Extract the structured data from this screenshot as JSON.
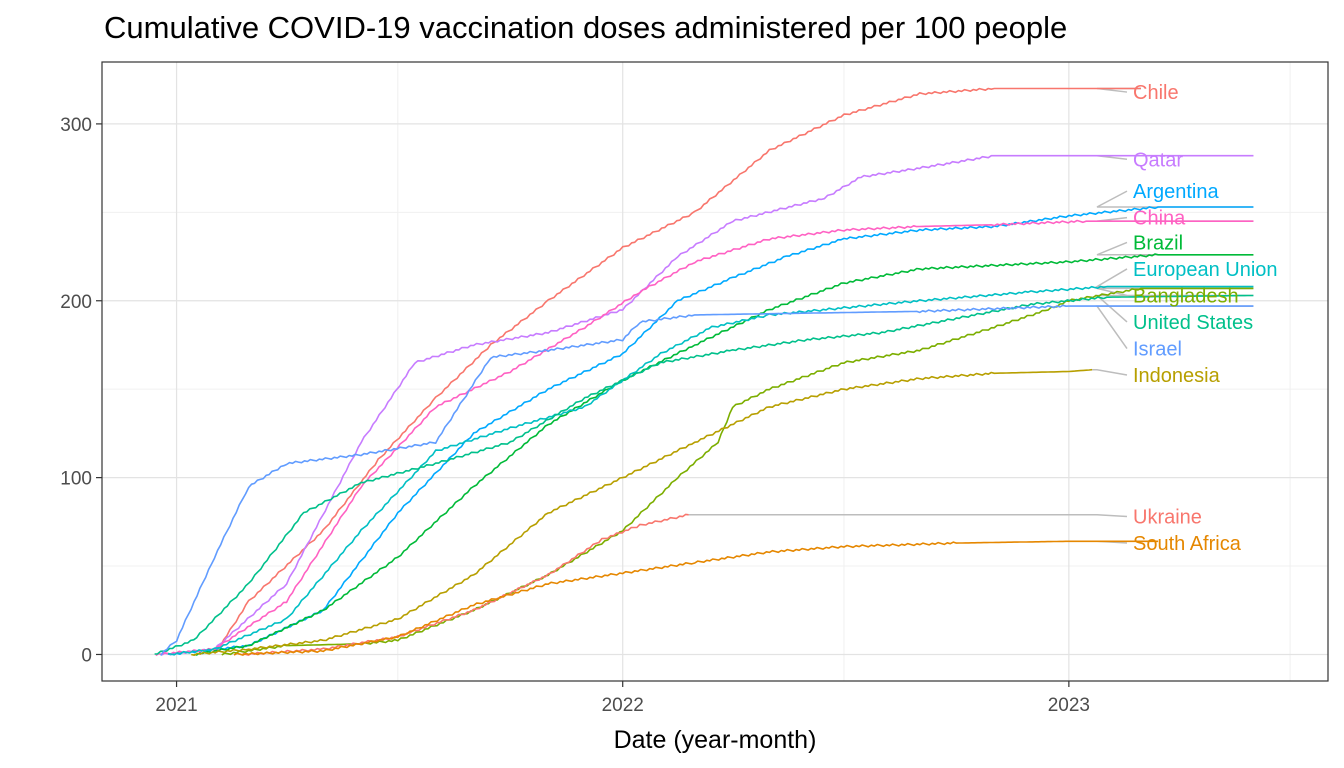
{
  "title": "Cumulative COVID-19 vaccination doses administered per 100 people",
  "chart_data": {
    "type": "line",
    "title": "Cumulative COVID-19 vaccination doses administered per 100 people",
    "xlabel": "Date (year-month)",
    "ylabel": "",
    "x_type": "date",
    "xlim": [
      "2020-11-01",
      "2023-08-01"
    ],
    "ylim": [
      -15,
      335
    ],
    "x_ticks": [
      "2021-01-01",
      "2022-01-01",
      "2023-01-01"
    ],
    "x_tick_labels": [
      "2021",
      "2022",
      "2023"
    ],
    "y_ticks": [
      0,
      100,
      200,
      300
    ],
    "grid": true,
    "legend": "direct labels at right end of lines",
    "series": [
      {
        "name": "Chile",
        "color": "#F8766D",
        "points": [
          [
            "2021-02-01",
            0
          ],
          [
            "2021-03-01",
            30
          ],
          [
            "2021-05-01",
            70
          ],
          [
            "2021-06-15",
            110
          ],
          [
            "2021-08-01",
            145
          ],
          [
            "2021-09-15",
            175
          ],
          [
            "2021-11-01",
            200
          ],
          [
            "2022-01-01",
            230
          ],
          [
            "2022-03-01",
            250
          ],
          [
            "2022-05-01",
            285
          ],
          [
            "2022-07-01",
            305
          ],
          [
            "2022-09-01",
            317
          ],
          [
            "2022-11-01",
            320
          ],
          [
            "2023-03-01",
            320
          ]
        ]
      },
      {
        "name": "Qatar",
        "color": "#C77CFF",
        "points": [
          [
            "2020-12-20",
            0
          ],
          [
            "2021-02-01",
            3
          ],
          [
            "2021-04-01",
            40
          ],
          [
            "2021-06-01",
            120
          ],
          [
            "2021-07-15",
            165
          ],
          [
            "2021-09-01",
            175
          ],
          [
            "2021-11-01",
            182
          ],
          [
            "2022-01-01",
            195
          ],
          [
            "2022-02-15",
            225
          ],
          [
            "2022-04-01",
            245
          ],
          [
            "2022-06-15",
            258
          ],
          [
            "2022-07-15",
            270
          ],
          [
            "2022-09-01",
            275
          ],
          [
            "2022-11-01",
            282
          ],
          [
            "2023-06-01",
            282
          ]
        ]
      },
      {
        "name": "Argentina",
        "color": "#00A9FF",
        "points": [
          [
            "2020-12-25",
            0
          ],
          [
            "2021-03-01",
            5
          ],
          [
            "2021-05-01",
            25
          ],
          [
            "2021-07-01",
            80
          ],
          [
            "2021-09-01",
            125
          ],
          [
            "2021-11-01",
            150
          ],
          [
            "2022-01-01",
            170
          ],
          [
            "2022-02-15",
            200
          ],
          [
            "2022-04-01",
            213
          ],
          [
            "2022-05-15",
            225
          ],
          [
            "2022-07-01",
            235
          ],
          [
            "2022-09-01",
            240
          ],
          [
            "2022-11-01",
            242
          ],
          [
            "2023-01-01",
            248
          ],
          [
            "2023-03-15",
            253
          ],
          [
            "2023-06-01",
            253
          ]
        ]
      },
      {
        "name": "China",
        "color": "#FF61C3",
        "points": [
          [
            "2020-12-15",
            0
          ],
          [
            "2021-02-01",
            3
          ],
          [
            "2021-04-01",
            30
          ],
          [
            "2021-06-01",
            95
          ],
          [
            "2021-08-01",
            140
          ],
          [
            "2021-10-01",
            160
          ],
          [
            "2021-12-01",
            185
          ],
          [
            "2022-01-15",
            205
          ],
          [
            "2022-03-01",
            222
          ],
          [
            "2022-05-01",
            235
          ],
          [
            "2022-07-01",
            240
          ],
          [
            "2022-09-01",
            242
          ],
          [
            "2022-11-01",
            243
          ],
          [
            "2023-01-15",
            245
          ],
          [
            "2023-06-01",
            245
          ]
        ]
      },
      {
        "name": "Brazil",
        "color": "#00BA38",
        "points": [
          [
            "2021-01-15",
            0
          ],
          [
            "2021-03-01",
            5
          ],
          [
            "2021-05-01",
            25
          ],
          [
            "2021-07-01",
            55
          ],
          [
            "2021-09-01",
            95
          ],
          [
            "2021-11-01",
            130
          ],
          [
            "2022-01-01",
            155
          ],
          [
            "2022-03-01",
            175
          ],
          [
            "2022-05-01",
            195
          ],
          [
            "2022-07-01",
            210
          ],
          [
            "2022-09-01",
            218
          ],
          [
            "2022-11-01",
            220
          ],
          [
            "2023-01-01",
            222
          ],
          [
            "2023-03-15",
            226
          ],
          [
            "2023-06-01",
            226
          ]
        ]
      },
      {
        "name": "European Union",
        "color": "#00BFC4",
        "points": [
          [
            "2020-12-25",
            0
          ],
          [
            "2021-02-01",
            3
          ],
          [
            "2021-04-01",
            20
          ],
          [
            "2021-06-01",
            70
          ],
          [
            "2021-08-01",
            115
          ],
          [
            "2021-10-01",
            128
          ],
          [
            "2021-12-01",
            140
          ],
          [
            "2022-02-01",
            170
          ],
          [
            "2022-03-15",
            185
          ],
          [
            "2022-05-01",
            192
          ],
          [
            "2022-07-01",
            196
          ],
          [
            "2022-09-01",
            200
          ],
          [
            "2022-12-01",
            205
          ],
          [
            "2023-02-01",
            208
          ],
          [
            "2023-06-01",
            208
          ]
        ]
      },
      {
        "name": "Bangladesh",
        "color": "#7CAE00",
        "points": [
          [
            "2021-02-07",
            0
          ],
          [
            "2021-04-01",
            5
          ],
          [
            "2021-06-01",
            6
          ],
          [
            "2021-07-01",
            8
          ],
          [
            "2021-09-01",
            25
          ],
          [
            "2021-11-01",
            45
          ],
          [
            "2022-01-01",
            70
          ],
          [
            "2022-02-15",
            100
          ],
          [
            "2022-03-20",
            120
          ],
          [
            "2022-04-01",
            140
          ],
          [
            "2022-05-01",
            150
          ],
          [
            "2022-07-01",
            165
          ],
          [
            "2022-09-01",
            172
          ],
          [
            "2022-11-01",
            185
          ],
          [
            "2022-12-15",
            195
          ],
          [
            "2023-01-01",
            200
          ],
          [
            "2023-03-01",
            207
          ],
          [
            "2023-06-01",
            207
          ]
        ]
      },
      {
        "name": "United States",
        "color": "#00C08B",
        "points": [
          [
            "2020-12-14",
            0
          ],
          [
            "2021-01-15",
            8
          ],
          [
            "2021-03-01",
            40
          ],
          [
            "2021-04-15",
            80
          ],
          [
            "2021-06-01",
            97
          ],
          [
            "2021-08-01",
            108
          ],
          [
            "2021-10-01",
            120
          ],
          [
            "2021-12-01",
            145
          ],
          [
            "2022-02-01",
            165
          ],
          [
            "2022-04-01",
            172
          ],
          [
            "2022-06-01",
            178
          ],
          [
            "2022-08-01",
            182
          ],
          [
            "2022-10-01",
            190
          ],
          [
            "2022-12-01",
            198
          ],
          [
            "2023-02-01",
            202
          ],
          [
            "2023-06-01",
            203
          ]
        ]
      },
      {
        "name": "Israel",
        "color": "#619CFF",
        "points": [
          [
            "2020-12-19",
            0
          ],
          [
            "2021-01-01",
            8
          ],
          [
            "2021-02-01",
            55
          ],
          [
            "2021-03-01",
            95
          ],
          [
            "2021-04-01",
            108
          ],
          [
            "2021-06-01",
            113
          ],
          [
            "2021-08-01",
            120
          ],
          [
            "2021-09-15",
            168
          ],
          [
            "2021-11-01",
            172
          ],
          [
            "2022-01-01",
            178
          ],
          [
            "2022-01-15",
            188
          ],
          [
            "2022-03-01",
            192
          ],
          [
            "2022-06-01",
            193
          ],
          [
            "2022-09-01",
            194
          ],
          [
            "2023-01-01",
            197
          ],
          [
            "2023-06-01",
            197
          ]
        ]
      },
      {
        "name": "Indonesia",
        "color": "#B79F00",
        "points": [
          [
            "2021-01-13",
            0
          ],
          [
            "2021-03-01",
            3
          ],
          [
            "2021-05-01",
            8
          ],
          [
            "2021-07-01",
            20
          ],
          [
            "2021-09-01",
            45
          ],
          [
            "2021-11-01",
            80
          ],
          [
            "2022-01-01",
            100
          ],
          [
            "2022-03-01",
            120
          ],
          [
            "2022-05-01",
            140
          ],
          [
            "2022-07-01",
            150
          ],
          [
            "2022-09-01",
            156
          ],
          [
            "2022-11-01",
            159
          ],
          [
            "2023-01-01",
            160
          ],
          [
            "2023-01-20",
            161
          ]
        ]
      },
      {
        "name": "Ukraine",
        "color": "#F8766D",
        "points": [
          [
            "2021-02-24",
            0
          ],
          [
            "2021-05-01",
            3
          ],
          [
            "2021-07-01",
            10
          ],
          [
            "2021-09-01",
            25
          ],
          [
            "2021-11-01",
            45
          ],
          [
            "2021-12-15",
            65
          ],
          [
            "2022-01-15",
            73
          ],
          [
            "2022-02-24",
            79
          ]
        ]
      },
      {
        "name": "South Africa",
        "color": "#E58700",
        "points": [
          [
            "2021-02-17",
            0
          ],
          [
            "2021-05-01",
            2
          ],
          [
            "2021-07-01",
            10
          ],
          [
            "2021-09-01",
            28
          ],
          [
            "2021-11-01",
            40
          ],
          [
            "2022-01-01",
            46
          ],
          [
            "2022-03-01",
            52
          ],
          [
            "2022-05-01",
            58
          ],
          [
            "2022-07-01",
            61
          ],
          [
            "2022-10-01",
            63
          ],
          [
            "2023-01-01",
            64
          ],
          [
            "2023-03-15",
            64
          ]
        ]
      }
    ],
    "labels": [
      {
        "text": "Chile",
        "color": "#F8766D",
        "label_y": 318
      },
      {
        "text": "Qatar",
        "color": "#C77CFF",
        "label_y": 280
      },
      {
        "text": "Argentina",
        "color": "#00A9FF",
        "label_y": 262
      },
      {
        "text": "China",
        "color": "#FF61C3",
        "label_y": 247
      },
      {
        "text": "Brazil",
        "color": "#00BA38",
        "label_y": 233
      },
      {
        "text": "European Union",
        "color": "#00BFC4",
        "label_y": 218
      },
      {
        "text": "Bangladesh",
        "color": "#7CAE00",
        "label_y": 203
      },
      {
        "text": "United States",
        "color": "#00C08B",
        "label_y": 188
      },
      {
        "text": "Israel",
        "color": "#619CFF",
        "label_y": 173
      },
      {
        "text": "Indonesia",
        "color": "#B79F00",
        "label_y": 158
      },
      {
        "text": "Ukraine",
        "color": "#F8766D",
        "label_y": 78
      },
      {
        "text": "South Africa",
        "color": "#E58700",
        "label_y": 63
      }
    ]
  }
}
